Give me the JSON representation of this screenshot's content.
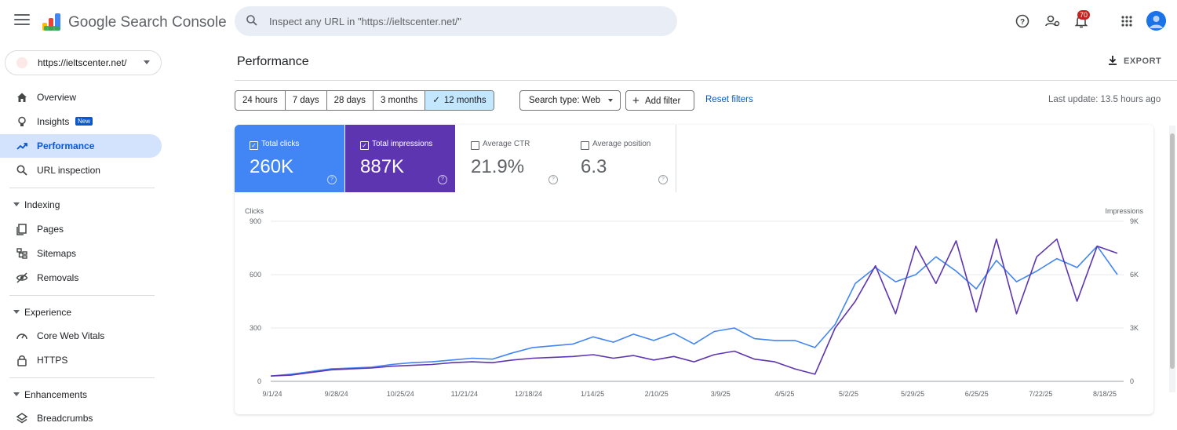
{
  "app": {
    "title": "Google Search Console"
  },
  "search": {
    "placeholder": "Inspect any URL in \"https://ieltscenter.net/\""
  },
  "header": {
    "notification_count": "70"
  },
  "property": {
    "url": "https://ieltscenter.net/"
  },
  "sidebar": {
    "items": [
      {
        "label": "Overview",
        "icon": "home-icon"
      },
      {
        "label": "Insights",
        "icon": "lightbulb-icon",
        "badge": "New"
      },
      {
        "label": "Performance",
        "icon": "trending-up-icon",
        "active": true
      },
      {
        "label": "URL inspection",
        "icon": "search-icon"
      }
    ],
    "sections": [
      {
        "title": "Indexing",
        "items": [
          {
            "label": "Pages",
            "icon": "pages-icon"
          },
          {
            "label": "Sitemaps",
            "icon": "sitemap-icon"
          },
          {
            "label": "Removals",
            "icon": "removals-icon"
          }
        ]
      },
      {
        "title": "Experience",
        "items": [
          {
            "label": "Core Web Vitals",
            "icon": "speed-icon"
          },
          {
            "label": "HTTPS",
            "icon": "lock-icon"
          }
        ]
      },
      {
        "title": "Enhancements",
        "items": [
          {
            "label": "Breadcrumbs",
            "icon": "layers-icon"
          }
        ]
      }
    ]
  },
  "page": {
    "title": "Performance",
    "export_label": "EXPORT"
  },
  "filters": {
    "ranges": [
      "24 hours",
      "7 days",
      "28 days",
      "3 months",
      "12 months"
    ],
    "selected_range": "12 months",
    "search_type": "Search type: Web",
    "add_filter": "Add filter",
    "reset": "Reset filters",
    "last_update": "Last update: 13.5 hours ago"
  },
  "metrics": {
    "clicks": {
      "label": "Total clicks",
      "value": "260K",
      "checked": true
    },
    "impressions": {
      "label": "Total impressions",
      "value": "887K",
      "checked": true
    },
    "ctr": {
      "label": "Average CTR",
      "value": "21.9%",
      "checked": false
    },
    "position": {
      "label": "Average position",
      "value": "6.3",
      "checked": false
    }
  },
  "colors": {
    "clicks": "#4285f4",
    "impressions": "#5e35b1",
    "active_nav": "#d3e3fd"
  },
  "chart_data": {
    "type": "line",
    "ylabel_left": "Clicks",
    "ylabel_right": "Impressions",
    "y_left_ticks": [
      "0",
      "300",
      "600",
      "900"
    ],
    "y_right_ticks": [
      "0",
      "3K",
      "6K",
      "9K"
    ],
    "ylim_left": [
      0,
      900
    ],
    "ylim_right": [
      0,
      9000
    ],
    "x_ticks": [
      "9/1/24",
      "9/28/24",
      "10/25/24",
      "11/21/24",
      "12/18/24",
      "1/14/25",
      "2/10/25",
      "3/9/25",
      "4/5/25",
      "5/2/25",
      "5/29/25",
      "6/25/25",
      "7/22/25",
      "8/18/25"
    ],
    "grid": true,
    "series": [
      {
        "name": "Clicks",
        "axis": "left",
        "color": "#4285f4",
        "values": [
          30,
          40,
          55,
          70,
          75,
          80,
          95,
          105,
          110,
          120,
          130,
          125,
          160,
          190,
          200,
          210,
          250,
          220,
          265,
          230,
          270,
          210,
          280,
          300,
          240,
          230,
          230,
          190,
          320,
          550,
          640,
          560,
          600,
          700,
          620,
          520,
          680,
          560,
          620,
          690,
          640,
          760,
          600
        ]
      },
      {
        "name": "Impressions",
        "axis": "right",
        "color": "#5e35b1",
        "values": [
          300,
          350,
          500,
          650,
          700,
          750,
          850,
          900,
          950,
          1050,
          1100,
          1050,
          1200,
          1300,
          1350,
          1400,
          1500,
          1300,
          1450,
          1200,
          1400,
          1100,
          1500,
          1700,
          1250,
          1100,
          700,
          400,
          3000,
          4500,
          6500,
          3800,
          7600,
          5500,
          7900,
          3900,
          8000,
          3800,
          7000,
          8000,
          4500,
          7600,
          7200
        ]
      }
    ]
  }
}
